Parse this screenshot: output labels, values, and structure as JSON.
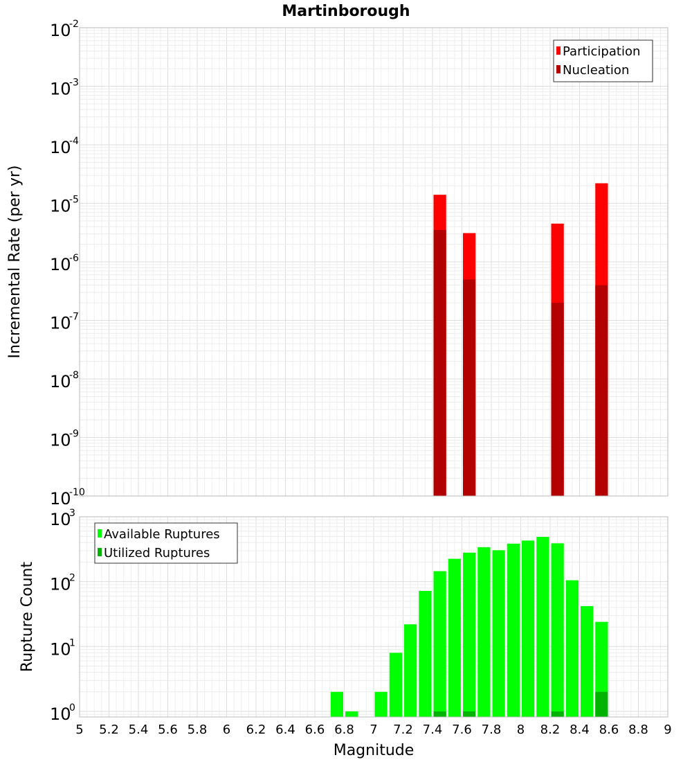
{
  "title": "Martinborough",
  "xlabel": "Magnitude",
  "x_ticks": [
    "5",
    "5.2",
    "5.4",
    "5.6",
    "5.8",
    "6",
    "6.2",
    "6.4",
    "6.6",
    "6.8",
    "7",
    "7.2",
    "7.4",
    "7.6",
    "7.8",
    "8",
    "8.2",
    "8.4",
    "8.6",
    "8.8",
    "9"
  ],
  "chart_data": [
    {
      "type": "bar",
      "ylabel": "Incremental Rate (per yr)",
      "yscale": "log",
      "ylim": [
        1e-10,
        0.01
      ],
      "xlim": [
        5,
        9
      ],
      "grid": true,
      "legend_position": "top-right",
      "y_ticks": [
        {
          "base": "10",
          "exp": "-10"
        },
        {
          "base": "10",
          "exp": "-9"
        },
        {
          "base": "10",
          "exp": "-8"
        },
        {
          "base": "10",
          "exp": "-7"
        },
        {
          "base": "10",
          "exp": "-6"
        },
        {
          "base": "10",
          "exp": "-5"
        },
        {
          "base": "10",
          "exp": "-4"
        },
        {
          "base": "10",
          "exp": "-3"
        },
        {
          "base": "10",
          "exp": "-2"
        }
      ],
      "x": [
        7.45,
        7.65,
        8.25,
        8.55
      ],
      "series": [
        {
          "name": "Participation",
          "color": "#ff0000",
          "values": [
            1.4e-05,
            3.1e-06,
            4.5e-06,
            2.2e-05
          ]
        },
        {
          "name": "Nucleation",
          "color": "#b30000",
          "values": [
            3.5e-06,
            5e-07,
            2e-07,
            4e-07
          ]
        }
      ]
    },
    {
      "type": "bar",
      "ylabel": "Rupture Count",
      "yscale": "log",
      "ylim": [
        0.82,
        1000
      ],
      "xlim": [
        5,
        9
      ],
      "grid": true,
      "legend_position": "top-left",
      "y_ticks": [
        {
          "base": "10",
          "exp": "0"
        },
        {
          "base": "10",
          "exp": "1"
        },
        {
          "base": "10",
          "exp": "2"
        },
        {
          "base": "10",
          "exp": "3"
        }
      ],
      "x": [
        6.75,
        6.85,
        7.05,
        7.15,
        7.25,
        7.35,
        7.45,
        7.55,
        7.65,
        7.75,
        7.85,
        7.95,
        8.05,
        8.15,
        8.25,
        8.35,
        8.45,
        8.55
      ],
      "series": [
        {
          "name": "Available Ruptures",
          "color": "#00ff00",
          "values": [
            2,
            1,
            2,
            8,
            22,
            72,
            145,
            225,
            280,
            340,
            305,
            385,
            430,
            490,
            390,
            105,
            42,
            24
          ]
        },
        {
          "name": "Utilized Ruptures",
          "color": "#00b300",
          "values": [
            null,
            null,
            null,
            null,
            null,
            null,
            1,
            null,
            1,
            null,
            null,
            null,
            null,
            null,
            1,
            null,
            null,
            2
          ]
        }
      ]
    }
  ]
}
